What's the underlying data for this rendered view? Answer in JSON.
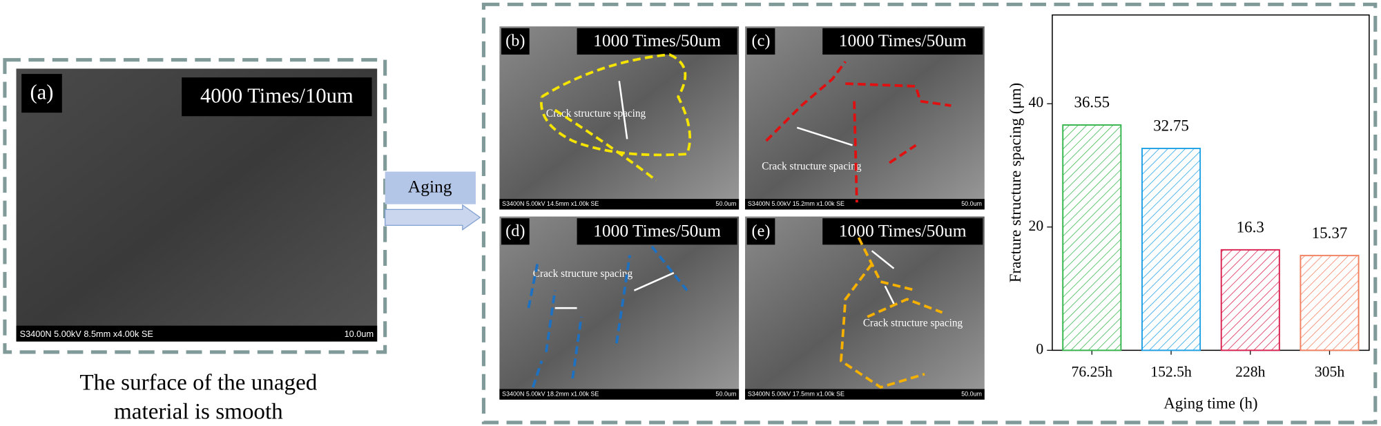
{
  "panel_a": {
    "label": "(a)",
    "scale": "4000 Times/10um",
    "info": "S3400N 5.00kV 8.5mm x4.00k SE",
    "scale_bar": "10.0um"
  },
  "caption": [
    "The surface of the unaged",
    "material is smooth"
  ],
  "arrow_label": "Aging",
  "panels": [
    {
      "label": "(b)",
      "scale": "1000 Times/50um",
      "info": "S3400N 5.00kV 14.5mm x1.00k SE",
      "scale_bar": "50.0um",
      "annotation": "Crack structure spacing"
    },
    {
      "label": "(c)",
      "scale": "1000 Times/50um",
      "info": "S3400N 5.00kV 15.2mm x1.00k SE",
      "scale_bar": "50.0um",
      "annotation": "Crack structure spacing"
    },
    {
      "label": "(d)",
      "scale": "1000 Times/50um",
      "info": "S3400N 5.00kV 18.2mm x1.00k SE",
      "scale_bar": "50.0um",
      "annotation": "Crack structure spacing"
    },
    {
      "label": "(e)",
      "scale": "1000 Times/50um",
      "info": "S3400N 5.00kV 17.5mm x1.00k SE",
      "scale_bar": "50.0um",
      "annotation": "Crack structure spacing"
    }
  ],
  "chart_data": {
    "type": "bar",
    "x_label": "Aging time (h)",
    "y_label": "Fracture structure spacing (μm)",
    "categories": [
      "76.25h",
      "152.5h",
      "228h",
      "305h"
    ],
    "values": [
      36.55,
      32.75,
      16.3,
      15.37
    ],
    "colors": [
      "#33b54a",
      "#1ea0e6",
      "#d9204f",
      "#f27f5e"
    ],
    "ylim": [
      0,
      54.4
    ],
    "yticks": [
      0,
      20,
      40
    ]
  }
}
